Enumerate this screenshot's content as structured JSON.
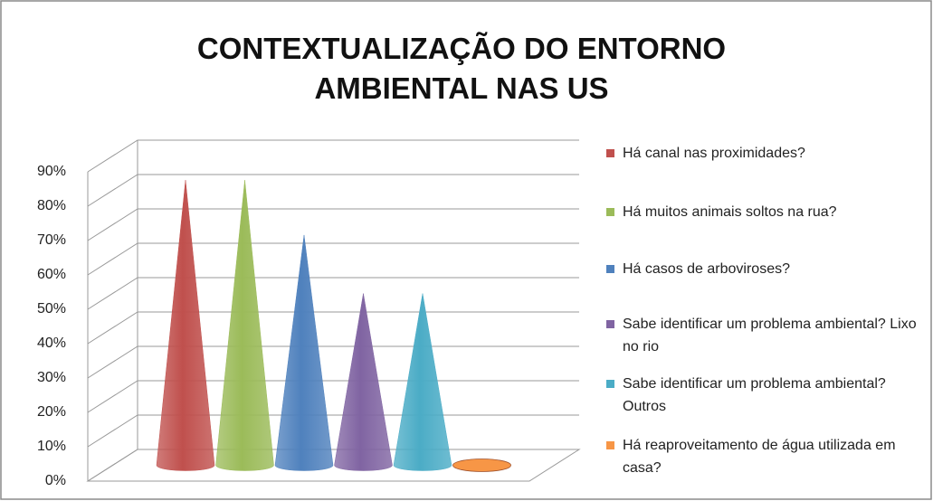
{
  "chart_data": {
    "type": "bar",
    "title": "CONTEXTUALIZAÇÃO DO ENTORNO AMBIENTAL NAS US",
    "series": [
      {
        "name": "Há canal nas proximidades?",
        "color": "#c0504d",
        "values": [
          83
        ]
      },
      {
        "name": "Há muitos animais soltos na rua?",
        "color": "#9bbb59",
        "values": [
          83
        ]
      },
      {
        "name": "Há casos de arboviroses?",
        "color": "#4f81bd",
        "values": [
          67
        ]
      },
      {
        "name": "Sabe identificar um problema ambiental? Lixo no rio",
        "color": "#8064a2",
        "values": [
          50
        ]
      },
      {
        "name": "Sabe identificar um problema ambiental? Outros",
        "color": "#4bacc6",
        "values": [
          50
        ]
      },
      {
        "name": "Há reaproveitamento de água utilizada em casa?",
        "color": "#f79646",
        "values": [
          0
        ]
      }
    ],
    "ylim": [
      0,
      90
    ],
    "yticks": [
      {
        "value": 0,
        "label": "0%"
      },
      {
        "value": 10,
        "label": "10%"
      },
      {
        "value": 20,
        "label": "20%"
      },
      {
        "value": 30,
        "label": "30%"
      },
      {
        "value": 40,
        "label": "40%"
      },
      {
        "value": 50,
        "label": "50%"
      },
      {
        "value": 60,
        "label": "60%"
      },
      {
        "value": 70,
        "label": "70%"
      },
      {
        "value": 80,
        "label": "80%"
      },
      {
        "value": 90,
        "label": "90%"
      }
    ],
    "grid": true,
    "legend": "right"
  }
}
